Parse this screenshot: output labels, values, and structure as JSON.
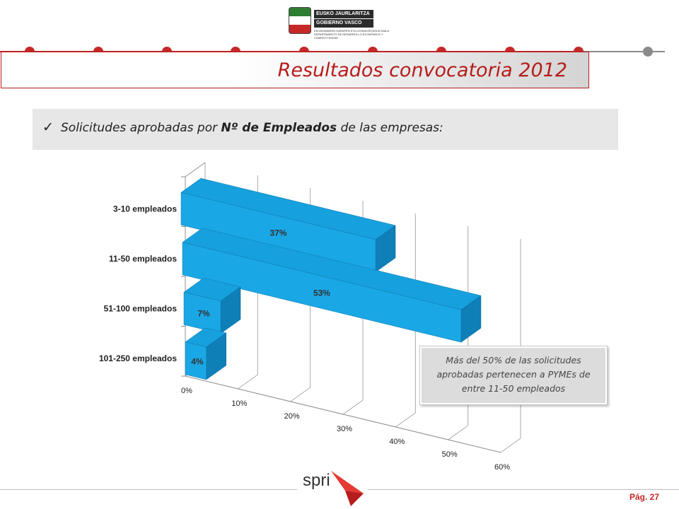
{
  "header": {
    "logo_line1": "EUSKO JAURLARITZA",
    "logo_line2": "GOBIERNO VASCO",
    "logo_small": "EKONOMIAREN GARAPEN ETA LEHIAKORTASUN SAILA · DEPARTAMENTO DE DESARROLLO ECONÓMICO Y COMPETITIVIDAD",
    "title": "Resultados convocatoria 2012"
  },
  "subtitle": {
    "check": "✓",
    "prefix": "Solicitudes aprobadas por ",
    "bold": "Nº de Empleados",
    "suffix": " de las empresas:"
  },
  "callout": {
    "text": "Más del 50% de las solicitudes aprobadas pertenecen a PYMEs de entre 11-50 empleados"
  },
  "footer": {
    "logo_text": "spri",
    "page": "Pág. 27"
  },
  "colors": {
    "accent_red": "#c62828",
    "dot_grey": "#8a8a8a",
    "bar_front": "#1aa7e5",
    "bar_top": "#16a0dd",
    "bar_side": "#0e7fb7"
  },
  "chart_data": {
    "type": "bar",
    "orientation": "horizontal",
    "three_d": true,
    "categories": [
      "3-10 empleados",
      "11-50 empleados",
      "51-100 empleados",
      "101-250 empleados"
    ],
    "values": [
      37,
      53,
      7,
      4
    ],
    "data_labels": [
      "37%",
      "53%",
      "7%",
      "4%"
    ],
    "x_ticks": [
      "0%",
      "10%",
      "20%",
      "30%",
      "40%",
      "50%",
      "60%"
    ],
    "xlim": [
      0,
      60
    ],
    "grid": true,
    "legend": "none"
  }
}
